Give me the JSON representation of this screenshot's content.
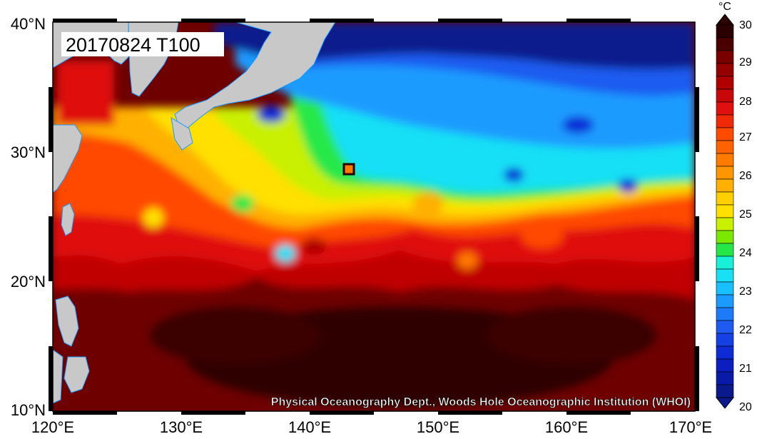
{
  "title_box": {
    "text": "20170824 T100"
  },
  "credit": "Physical Oceanography Dept., Woods Hole Oceanographic Institution (WHOI)",
  "axes": {
    "lon_ticks": [
      "120°E",
      "130°E",
      "140°E",
      "150°E",
      "160°E",
      "170°E"
    ],
    "lat_ticks": [
      "40°N",
      "30°N",
      "20°N",
      "10°N"
    ]
  },
  "colorbar": {
    "unit": "°C",
    "ticks": [
      "30",
      "29",
      "28",
      "27",
      "26",
      "25",
      "24",
      "23",
      "22",
      "21",
      "20"
    ],
    "colors": {
      "c20": "#0a1a8c",
      "c21": "#0f2bd6",
      "c22": "#1f5bf0",
      "c23": "#1b9bff",
      "c24": "#18e0f5",
      "c245": "#25e848",
      "c25": "#c8f000",
      "c255": "#ffe000",
      "c26": "#ffb000",
      "c265": "#ff7a00",
      "c27": "#ff4a00",
      "c28": "#e01010",
      "c285": "#b00000",
      "c29": "#7a0000",
      "c30": "#2a0000"
    }
  },
  "colors": {
    "land": "#c8c8c8",
    "north_deep": "#0a1a8c",
    "mid_cyan": "#18e0f5",
    "warm_red": "#ff4a00",
    "hot_dark": "#4a0000"
  }
}
